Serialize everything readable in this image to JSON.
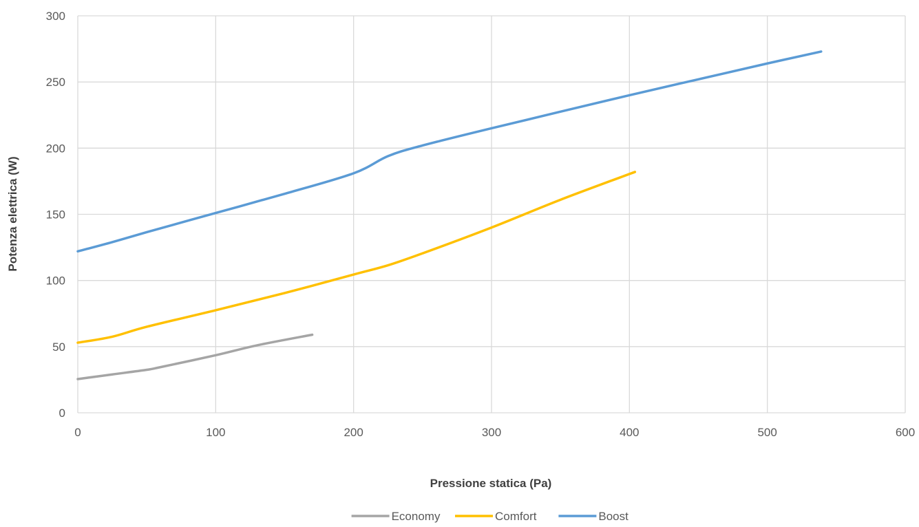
{
  "chart_data": {
    "type": "line",
    "title": "",
    "xlabel": "Pressione statica (Pa)",
    "ylabel": "Potenza elettrica (W)",
    "xlim": [
      0,
      600
    ],
    "ylim": [
      0,
      300
    ],
    "xticks": [
      0,
      100,
      200,
      300,
      400,
      500,
      600
    ],
    "yticks": [
      0,
      50,
      100,
      150,
      200,
      250,
      300
    ],
    "xtick_labels": [
      "0",
      "100",
      "200",
      "300",
      "400",
      "500",
      "600"
    ],
    "ytick_labels": [
      "0",
      "50",
      "100",
      "150",
      "200",
      "250",
      "300"
    ],
    "grid": true,
    "legend_position": "bottom",
    "series": [
      {
        "name": "Economy",
        "color": "#A5A5A5",
        "x": [
          0,
          25,
          50,
          60,
          100,
          130,
          170
        ],
        "y": [
          25.5,
          29,
          32.5,
          34.5,
          43.5,
          51,
          59
        ]
      },
      {
        "name": "Comfort",
        "color": "#FFC000",
        "x": [
          0,
          25,
          50,
          100,
          150,
          200,
          225,
          250,
          300,
          350,
          404
        ],
        "y": [
          53,
          57.5,
          65,
          77.5,
          90.5,
          104.5,
          111.5,
          120.5,
          140,
          161,
          182
        ]
      },
      {
        "name": "Boost",
        "color": "#5B9BD5",
        "x": [
          0,
          25,
          50,
          100,
          150,
          200,
          225,
          250,
          300,
          400,
          450,
          500,
          539
        ],
        "y": [
          122,
          129,
          136.5,
          151,
          165.5,
          181,
          194,
          202,
          215,
          240,
          252,
          264,
          273
        ]
      }
    ]
  }
}
